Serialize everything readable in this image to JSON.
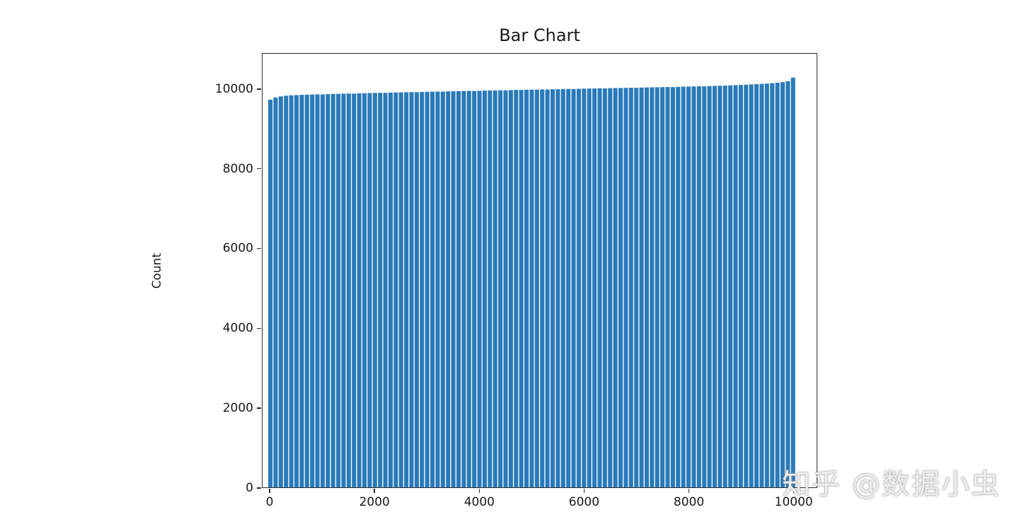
{
  "chart_data": {
    "type": "bar",
    "title": "Bar Chart",
    "xlabel": "",
    "ylabel": "Count",
    "x_ticks": [
      0,
      2000,
      4000,
      6000,
      8000,
      10000
    ],
    "y_ticks": [
      0,
      2000,
      4000,
      6000,
      8000,
      10000
    ],
    "xlim": [
      -150,
      10450
    ],
    "ylim": [
      0,
      10900
    ],
    "grid": false,
    "legend": "none",
    "bar_color": "#2a7ab9",
    "x": [
      0,
      100,
      200,
      300,
      400,
      500,
      600,
      700,
      800,
      900,
      1000,
      1100,
      1200,
      1300,
      1400,
      1500,
      1600,
      1700,
      1800,
      1900,
      2000,
      2100,
      2200,
      2300,
      2400,
      2500,
      2600,
      2700,
      2800,
      2900,
      3000,
      3100,
      3200,
      3300,
      3400,
      3500,
      3600,
      3700,
      3800,
      3900,
      4000,
      4100,
      4200,
      4300,
      4400,
      4500,
      4600,
      4700,
      4800,
      4900,
      5000,
      5100,
      5200,
      5300,
      5400,
      5500,
      5600,
      5700,
      5800,
      5900,
      6000,
      6100,
      6200,
      6300,
      6400,
      6500,
      6600,
      6700,
      6800,
      6900,
      7000,
      7100,
      7200,
      7300,
      7400,
      7500,
      7600,
      7700,
      7800,
      7900,
      8000,
      8100,
      8200,
      8300,
      8400,
      8500,
      8600,
      8700,
      8800,
      8900,
      9000,
      9100,
      9200,
      9300,
      9400,
      9500,
      9600,
      9700,
      9800,
      9900,
      10000
    ],
    "values": [
      9745,
      9800,
      9828,
      9845,
      9856,
      9860,
      9868,
      9870,
      9876,
      9880,
      9878,
      9886,
      9890,
      9893,
      9896,
      9900,
      9898,
      9905,
      9908,
      9912,
      9915,
      9918,
      9916,
      9924,
      9928,
      9930,
      9933,
      9936,
      9934,
      9940,
      9944,
      9947,
      9950,
      9948,
      9955,
      9958,
      9960,
      9963,
      9966,
      9964,
      9970,
      9974,
      9976,
      9979,
      9982,
      9980,
      9986,
      9990,
      9992,
      9995,
      9998,
      10000,
      10003,
      10001,
      10008,
      10010,
      10013,
      10016,
      10014,
      10020,
      10023,
      10026,
      10028,
      10031,
      10029,
      10035,
      10038,
      10040,
      10043,
      10046,
      10044,
      10050,
      10053,
      10056,
      10058,
      10061,
      10064,
      10062,
      10068,
      10072,
      10075,
      10078,
      10082,
      10080,
      10088,
      10092,
      10096,
      10100,
      10105,
      10110,
      10116,
      10122,
      10128,
      10135,
      10142,
      10150,
      10160,
      10172,
      10186,
      10210,
      10300
    ]
  },
  "watermark": {
    "text": "知乎 @数据小虫"
  }
}
